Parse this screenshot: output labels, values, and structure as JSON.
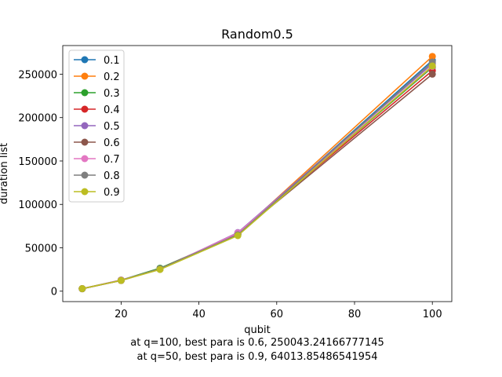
{
  "chart_data": {
    "type": "line",
    "title": "Random0.5",
    "xlabel": "qubit",
    "ylabel": "duration list",
    "x": [
      10,
      20,
      30,
      50,
      100
    ],
    "xlim": [
      5,
      105
    ],
    "ylim": [
      -12000,
      283000
    ],
    "xticks": [
      20,
      40,
      60,
      80,
      100
    ],
    "yticks": [
      0,
      50000,
      100000,
      150000,
      200000,
      250000
    ],
    "grid": false,
    "legend_position": "top-left",
    "series": [
      {
        "name": "0.1",
        "color": "#1f77b4",
        "values": [
          2900,
          12600,
          26000,
          65000,
          266000
        ]
      },
      {
        "name": "0.2",
        "color": "#ff7f0e",
        "values": [
          2800,
          12500,
          25500,
          66000,
          270500
        ]
      },
      {
        "name": "0.3",
        "color": "#2ca02c",
        "values": [
          2850,
          12700,
          26500,
          65500,
          258000
        ]
      },
      {
        "name": "0.4",
        "color": "#d62728",
        "values": [
          2900,
          12400,
          25800,
          66500,
          254000
        ]
      },
      {
        "name": "0.5",
        "color": "#9467bd",
        "values": [
          2800,
          12800,
          25200,
          67500,
          262000
        ]
      },
      {
        "name": "0.6",
        "color": "#8c564b",
        "values": [
          2900,
          12300,
          25600,
          66000,
          250043.24166777145
        ]
      },
      {
        "name": "0.7",
        "color": "#e377c2",
        "values": [
          2850,
          12900,
          25400,
          67000,
          259000
        ]
      },
      {
        "name": "0.8",
        "color": "#7f7f7f",
        "values": [
          2800,
          12500,
          25900,
          65000,
          264000
        ]
      },
      {
        "name": "0.9",
        "color": "#bcbd22",
        "values": [
          2900,
          12400,
          25000,
          64013.85486541954,
          259500
        ]
      }
    ]
  },
  "captions": [
    "at q=100, best para is 0.6, 250043.24166777145",
    "at q=50, best para is 0.9, 64013.85486541954"
  ]
}
